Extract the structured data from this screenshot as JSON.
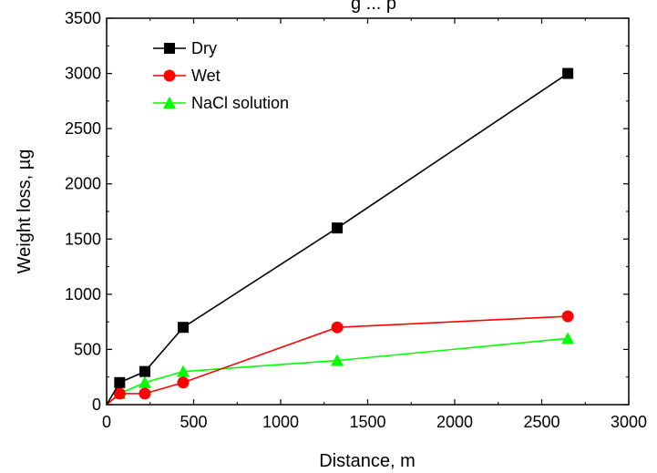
{
  "chart_data": {
    "type": "line",
    "title": "",
    "title_fragment": "g ... p",
    "xlabel": "Distance, m",
    "ylabel": "Weight loss, µg",
    "xlim": [
      0,
      3000
    ],
    "ylim": [
      0,
      3500
    ],
    "x_ticks": [
      0,
      500,
      1000,
      1500,
      2000,
      2500,
      3000
    ],
    "y_ticks": [
      0,
      500,
      1000,
      1500,
      2000,
      2500,
      3000,
      3500
    ],
    "grid": false,
    "legend_position": "top-left",
    "series": [
      {
        "name": "Dry",
        "color": "#000000",
        "marker": "square",
        "x": [
          0,
          75,
          220,
          440,
          1325,
          2650
        ],
        "y": [
          0,
          200,
          300,
          700,
          1600,
          3000
        ]
      },
      {
        "name": "Wet",
        "color": "#ff0000",
        "marker": "circle",
        "x": [
          0,
          75,
          220,
          440,
          1325,
          2650
        ],
        "y": [
          0,
          100,
          100,
          200,
          700,
          800
        ]
      },
      {
        "name": "NaCl solution",
        "color": "#00ff00",
        "marker": "triangle",
        "x": [
          0,
          75,
          220,
          440,
          1325,
          2650
        ],
        "y": [
          0,
          100,
          200,
          300,
          400,
          600
        ]
      }
    ]
  }
}
